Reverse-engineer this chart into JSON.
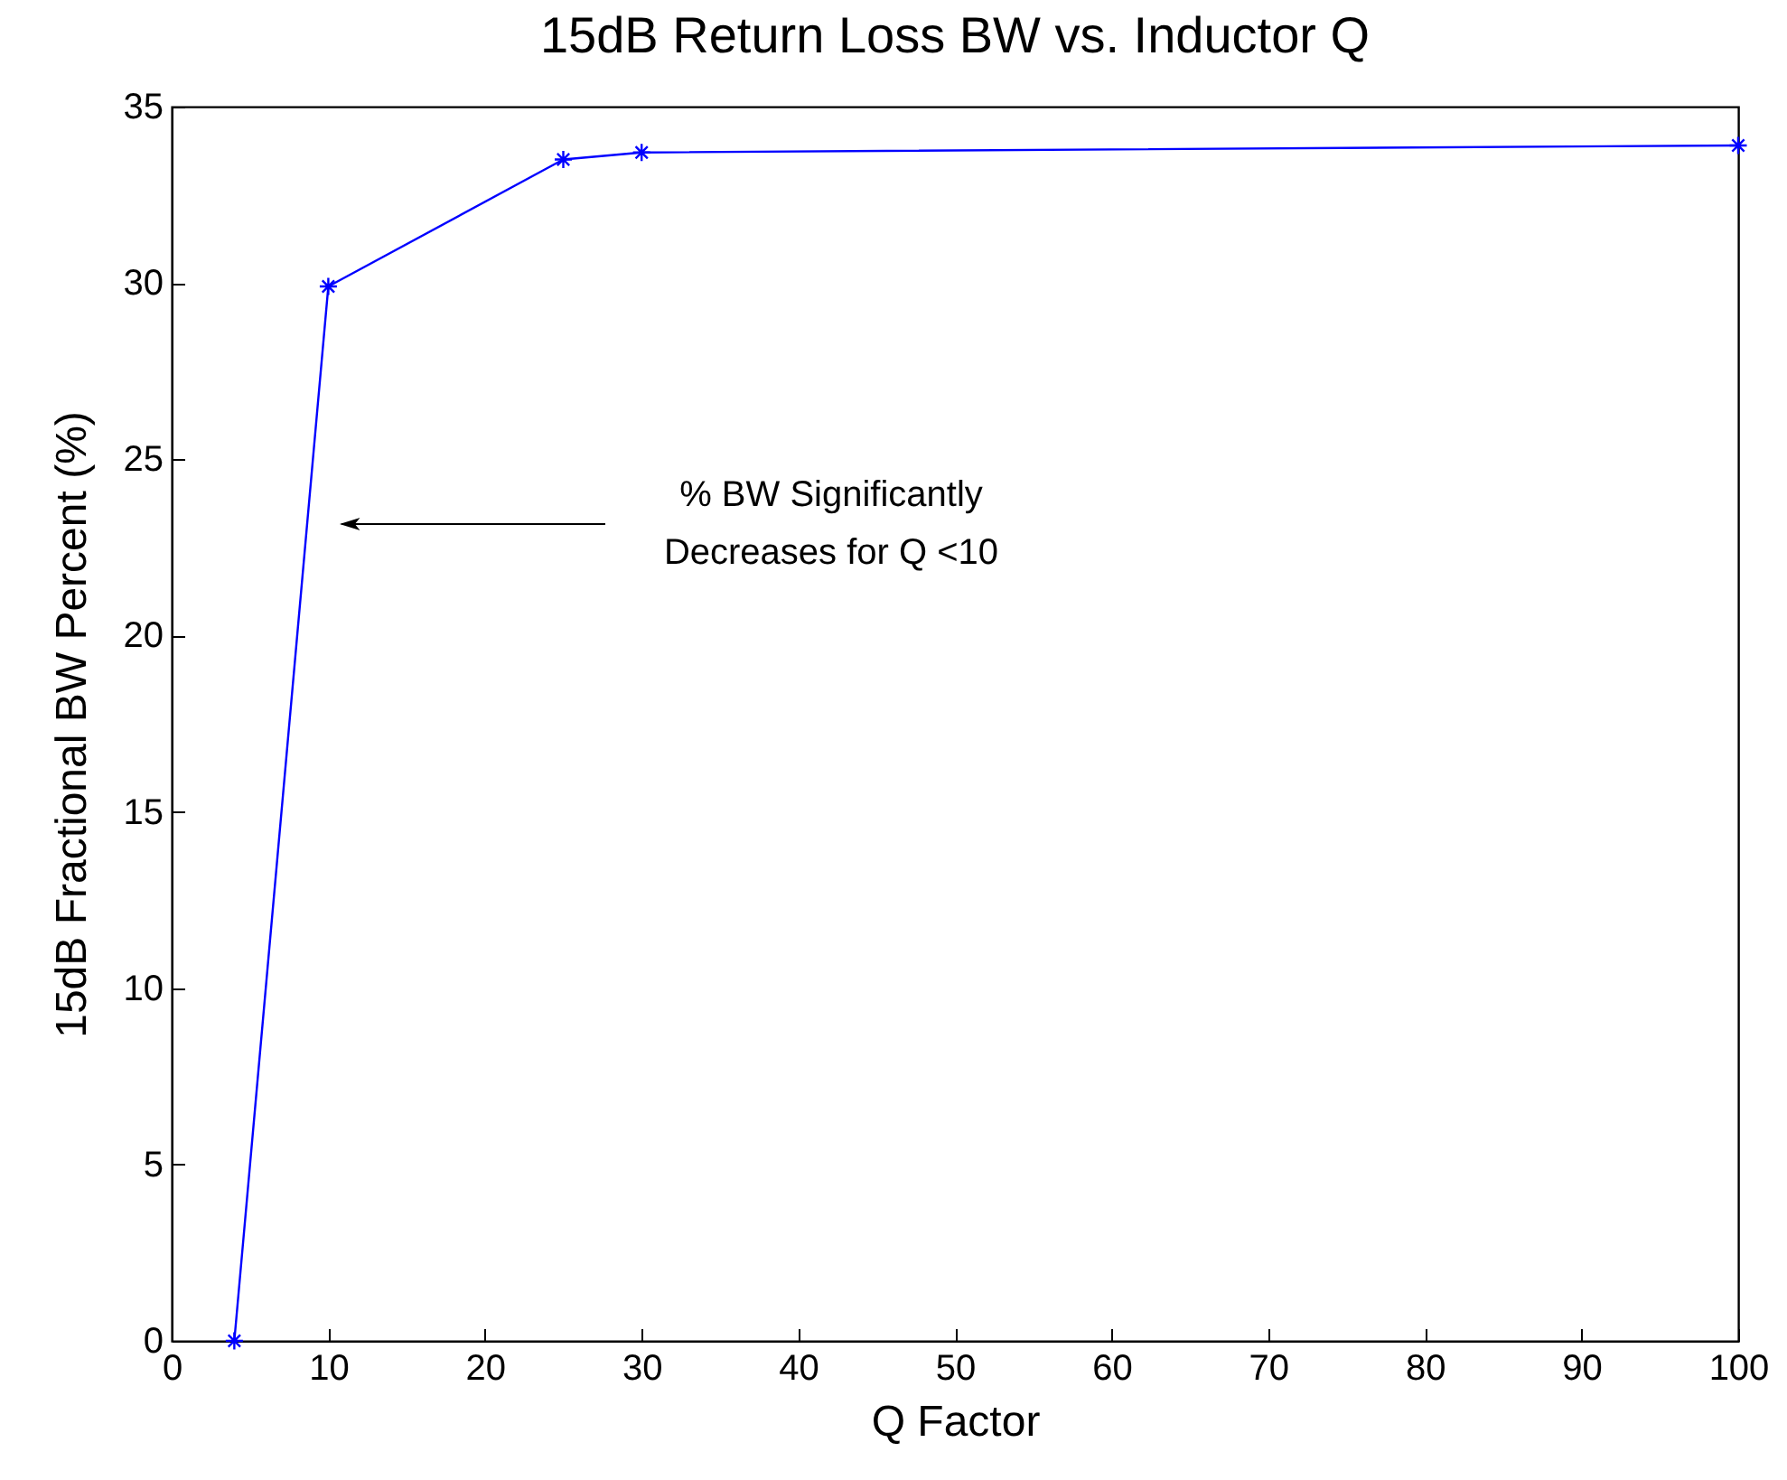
{
  "chart_data": {
    "type": "line",
    "title": "15dB Return Loss BW vs. Inductor Q",
    "xlabel": "Q Factor",
    "ylabel": "15dB Fractional BW Percent (%)",
    "x": [
      4,
      10,
      25,
      30,
      100
    ],
    "series": [
      {
        "color": "#0000ff",
        "values": [
          0,
          29.9,
          33.5,
          33.7,
          33.9
        ]
      }
    ],
    "xlim": [
      0,
      100
    ],
    "xticks": [
      0,
      10,
      20,
      30,
      40,
      50,
      60,
      70,
      80,
      90,
      100
    ],
    "ylim": [
      0,
      35
    ],
    "yticks": [
      0,
      5,
      10,
      15,
      20,
      25,
      30,
      35
    ],
    "marker": "cross",
    "line_style": "solid",
    "grid": false,
    "annotations": [
      "% BW Significantly\nDecreases for Q <10"
    ]
  }
}
